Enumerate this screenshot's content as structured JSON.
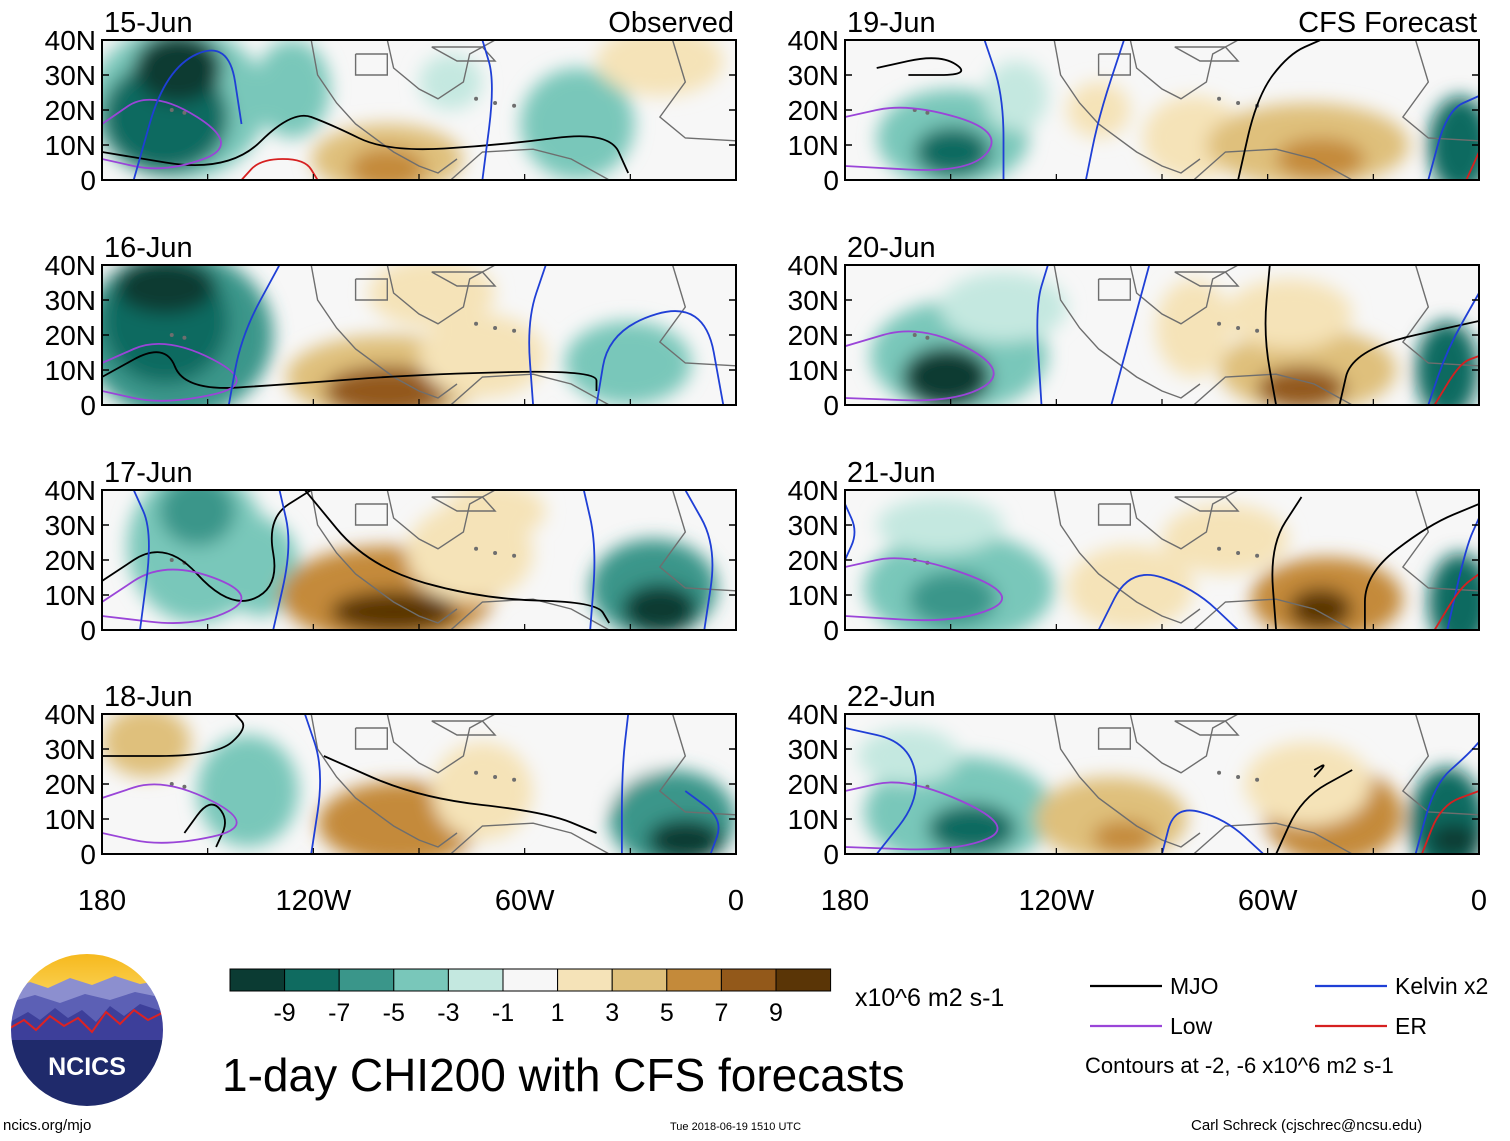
{
  "title": "1-day CHI200 with CFS forecasts",
  "panel_headers": {
    "left": "Observed",
    "right": "CFS Forecast"
  },
  "panels": [
    {
      "date": "15-Jun",
      "col": 0,
      "row": 0,
      "kind": "observed"
    },
    {
      "date": "16-Jun",
      "col": 0,
      "row": 1,
      "kind": "observed"
    },
    {
      "date": "17-Jun",
      "col": 0,
      "row": 2,
      "kind": "observed"
    },
    {
      "date": "18-Jun",
      "col": 0,
      "row": 3,
      "kind": "observed"
    },
    {
      "date": "19-Jun",
      "col": 1,
      "row": 0,
      "kind": "forecast"
    },
    {
      "date": "20-Jun",
      "col": 1,
      "row": 1,
      "kind": "forecast"
    },
    {
      "date": "21-Jun",
      "col": 1,
      "row": 2,
      "kind": "forecast"
    },
    {
      "date": "22-Jun",
      "col": 1,
      "row": 3,
      "kind": "forecast"
    }
  ],
  "lat_ticks": [
    "40N",
    "30N",
    "20N",
    "10N",
    "0"
  ],
  "lon_ticks": [
    "180",
    "120W",
    "60W",
    "0"
  ],
  "colorbar": {
    "unit": "x10^6 m2 s-1",
    "labels": [
      "-9",
      "-7",
      "-5",
      "-3",
      "-1",
      "1",
      "3",
      "5",
      "7",
      "9"
    ],
    "colors": [
      "#0b3b33",
      "#0f6b60",
      "#3a968a",
      "#79c7ba",
      "#c4e8e0",
      "#f7f7f7",
      "#f5e3b8",
      "#dfc07b",
      "#c48a3a",
      "#93591a",
      "#5a3506"
    ]
  },
  "legend": {
    "items": [
      {
        "label": "MJO",
        "color": "#000000"
      },
      {
        "label": "Kelvin x2",
        "color": "#1f3fd6"
      },
      {
        "label": "Low",
        "color": "#9a45d8"
      },
      {
        "label": "ER",
        "color": "#d62020"
      }
    ],
    "note": "Contours at -2, -6 x10^6 m2 s-1"
  },
  "logo": {
    "text": "NCICS"
  },
  "footer": {
    "website": "ncics.org/mjo",
    "timestamp": "Tue 2018-06-19 1510 UTC",
    "author": "Carl Schreck (cjschrec@ncsu.edu)"
  }
}
